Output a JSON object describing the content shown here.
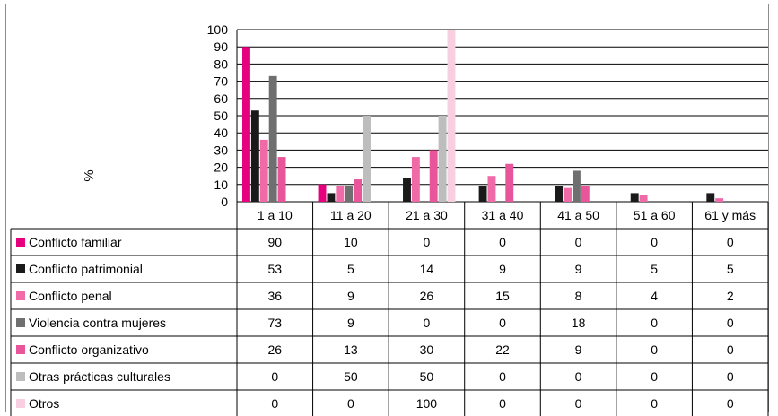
{
  "chart_data": {
    "type": "bar",
    "ylabel": "%",
    "ylim": [
      0,
      100
    ],
    "yticks": [
      "0",
      "10",
      "20",
      "30",
      "40",
      "50",
      "60",
      "70",
      "80",
      "90",
      "100"
    ],
    "grid": true,
    "legend": "table-left",
    "categories": [
      "1 a 10",
      "11 a 20",
      "21 a 30",
      "31 a 40",
      "41 a 50",
      "51 a 60",
      "61 y más"
    ],
    "series": [
      {
        "name": "Conflicto familiar",
        "color": "#e6007e",
        "values": [
          90,
          10,
          0,
          0,
          0,
          0,
          0
        ]
      },
      {
        "name": "Conflicto patrimonial",
        "color": "#1a1a1a",
        "values": [
          53,
          5,
          14,
          9,
          9,
          5,
          5
        ]
      },
      {
        "name": "Conflicto penal",
        "color": "#f06aa8",
        "values": [
          36,
          9,
          26,
          15,
          8,
          4,
          2
        ]
      },
      {
        "name": "Violencia contra mujeres",
        "color": "#6f6f6f",
        "values": [
          73,
          9,
          0,
          0,
          18,
          0,
          0
        ]
      },
      {
        "name": "Conflicto organizativo",
        "color": "#e8559a",
        "values": [
          26,
          13,
          30,
          22,
          9,
          0,
          0
        ]
      },
      {
        "name": "Otras prácticas culturales",
        "color": "#bdbdbd",
        "values": [
          0,
          50,
          50,
          0,
          0,
          0,
          0
        ]
      },
      {
        "name": "Otros",
        "color": "#f7cfe0",
        "values": [
          0,
          0,
          100,
          0,
          0,
          0,
          0
        ]
      }
    ]
  }
}
